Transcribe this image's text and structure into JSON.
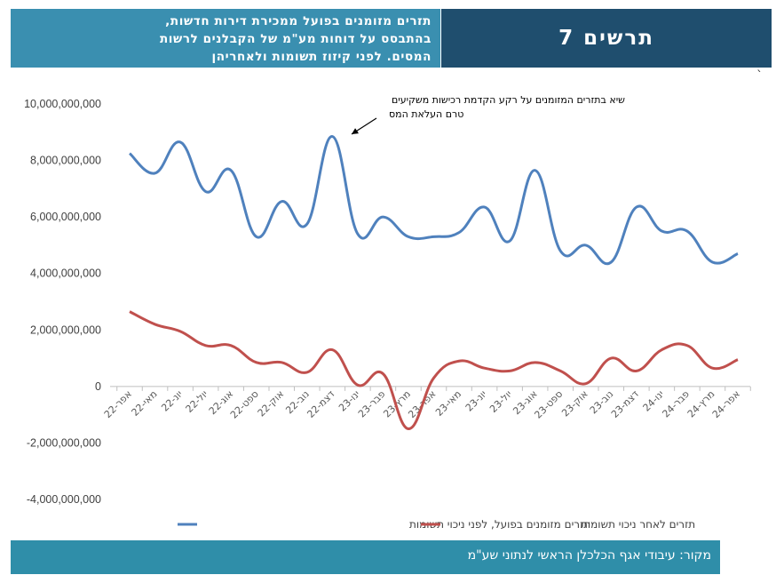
{
  "header": {
    "title": "תרשים 7",
    "subtitle_lines": [
      "תזרים מזומנים בפועל ממכירת דירות חדשות,",
      "בהתבסס על דוחות מע\"מ של הקבלנים לרשות",
      "המסים. לפני קיזוז תשומות ולאחריהן"
    ]
  },
  "footer": {
    "source": "מקור: עיבודי אגף הכלכלן הראשי לנתוני שע\"מ"
  },
  "colors": {
    "header_dark": "#1f4e6e",
    "header_light": "#3a8fb0",
    "footer": "#2f8ea9",
    "series_before": "#4f81bd",
    "series_after": "#c0504d"
  },
  "chart_data": {
    "type": "line",
    "title": "",
    "xlabel": "",
    "ylabel": "",
    "ylim": [
      -4000000000,
      10000000000
    ],
    "yticks": [
      10000000000,
      8000000000,
      6000000000,
      4000000000,
      2000000000,
      0,
      -2000000000,
      -4000000000
    ],
    "ytick_labels": [
      "10,000,000,000",
      "8,000,000,000",
      "6,000,000,000",
      "4,000,000,000",
      "2,000,000,000",
      "0",
      "-2,000,000,000",
      "-4,000,000,000"
    ],
    "grid": false,
    "legend_position": "bottom",
    "categories": [
      "אפר-22",
      "מאי-22",
      "יונ-22",
      "יול-22",
      "אוג-22",
      "ספט-22",
      "אוק-22",
      "נוב-22",
      "דצמ-22",
      "ינו-23",
      "פבר-23",
      "מרץ-23",
      "אפר-23",
      "מאי-23",
      "יונ-23",
      "יול-23",
      "אוג-23",
      "ספט-23",
      "אוק-23",
      "נוב-23",
      "דצמ-23",
      "ינו-24",
      "פבר-24",
      "מרץ-24",
      "אפר-24"
    ],
    "series": [
      {
        "name": "תזרים מזומנים בפועל, לפני ניכוי תשומות",
        "values": [
          8250000000,
          7550000000,
          8650000000,
          6900000000,
          7650000000,
          5300000000,
          6550000000,
          5750000000,
          8850000000,
          5400000000,
          6000000000,
          5300000000,
          5300000000,
          5450000000,
          6350000000,
          5150000000,
          7650000000,
          4800000000,
          5000000000,
          4400000000,
          6350000000,
          5500000000,
          5500000000,
          4400000000,
          4700000000
        ]
      },
      {
        "name": "תזרים לאחר ניכוי תשומות",
        "values": [
          2650000000,
          2200000000,
          1950000000,
          1450000000,
          1450000000,
          850000000,
          850000000,
          500000000,
          1300000000,
          50000000,
          450000000,
          -1500000000,
          300000000,
          900000000,
          650000000,
          550000000,
          850000000,
          550000000,
          100000000,
          1000000000,
          550000000,
          1300000000,
          1450000000,
          650000000,
          950000000
        ]
      }
    ],
    "annotations": [
      {
        "lines": [
          "שיא בתזרים המזומנים על רקע הקדמת רכישות משקיעים",
          "טרם העלאת המס"
        ],
        "category_index": 8
      }
    ]
  }
}
